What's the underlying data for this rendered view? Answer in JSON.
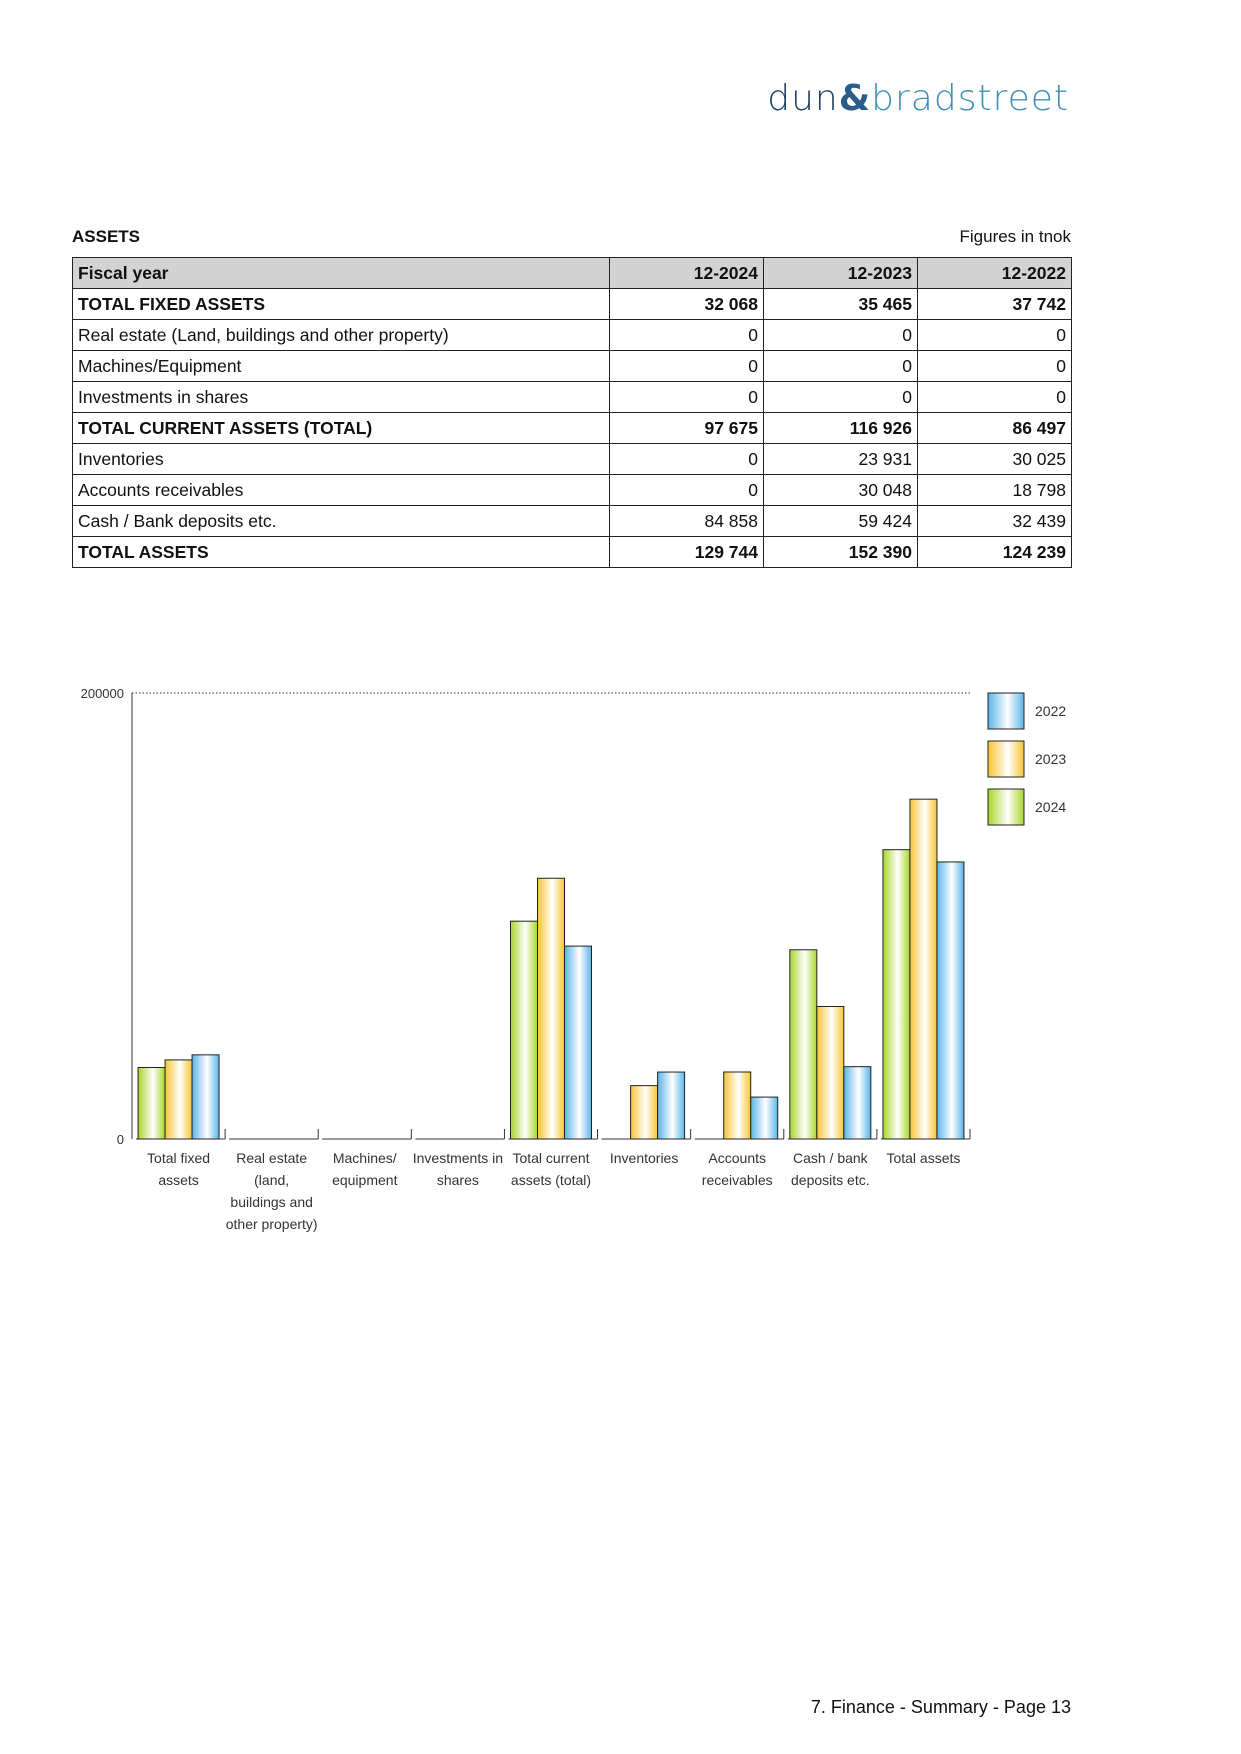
{
  "logo": {
    "text": "dun & bradstreet",
    "part1": "dun",
    "amp": "&",
    "part2": "bradstreet"
  },
  "section": {
    "title": "ASSETS",
    "units": "Figures in tnok"
  },
  "table": {
    "header": [
      "Fiscal year",
      "12-2024",
      "12-2023",
      "12-2022"
    ],
    "rows": [
      {
        "label": "TOTAL FIXED ASSETS",
        "values": [
          "32 068",
          "35 465",
          "37 742"
        ],
        "bold": true
      },
      {
        "label": "Real estate (Land, buildings and other property)",
        "values": [
          "0",
          "0",
          "0"
        ],
        "bold": false
      },
      {
        "label": "Machines/Equipment",
        "values": [
          "0",
          "0",
          "0"
        ],
        "bold": false
      },
      {
        "label": "Investments in shares",
        "values": [
          "0",
          "0",
          "0"
        ],
        "bold": false
      },
      {
        "label": "TOTAL CURRENT ASSETS (TOTAL)",
        "values": [
          "97 675",
          "116 926",
          "86 497"
        ],
        "bold": true
      },
      {
        "label": "Inventories",
        "values": [
          "0",
          "23 931",
          "30 025"
        ],
        "bold": false
      },
      {
        "label": "Accounts receivables",
        "values": [
          "0",
          "30 048",
          "18 798"
        ],
        "bold": false
      },
      {
        "label": "Cash / Bank deposits etc.",
        "values": [
          "84 858",
          "59 424",
          "32 439"
        ],
        "bold": false
      },
      {
        "label": "TOTAL ASSETS",
        "values": [
          "129 744",
          "152 390",
          "124 239"
        ],
        "bold": true
      }
    ]
  },
  "chart_data": {
    "type": "bar",
    "categories": [
      [
        "Total fixed",
        "assets"
      ],
      [
        "Real estate",
        "(land,",
        "buildings and",
        "other property)"
      ],
      [
        "Machines/",
        "equipment"
      ],
      [
        "Investments in",
        "shares"
      ],
      [
        "Total current",
        "assets (total)"
      ],
      [
        "Inventories"
      ],
      [
        "Accounts",
        "receivables"
      ],
      [
        "Cash / bank",
        "deposits etc."
      ],
      [
        "Total assets"
      ]
    ],
    "series": [
      {
        "name": "2024",
        "color": "#a8d42a",
        "values": [
          32068,
          0,
          0,
          0,
          97675,
          0,
          0,
          84858,
          129744
        ]
      },
      {
        "name": "2023",
        "color": "#f7c531",
        "values": [
          35465,
          0,
          0,
          0,
          116926,
          23931,
          30048,
          59424,
          152390
        ]
      },
      {
        "name": "2022",
        "color": "#5ab4e8",
        "values": [
          37742,
          0,
          0,
          0,
          86497,
          30025,
          18798,
          32439,
          124239
        ]
      }
    ],
    "ylim": [
      0,
      200000
    ],
    "yticks": [
      "0",
      "200000"
    ],
    "legend": [
      "2022",
      "2023",
      "2024"
    ],
    "legend_position": "right",
    "grid": "dotted top line only"
  },
  "footer": "7. Finance - Summary - Page 13"
}
